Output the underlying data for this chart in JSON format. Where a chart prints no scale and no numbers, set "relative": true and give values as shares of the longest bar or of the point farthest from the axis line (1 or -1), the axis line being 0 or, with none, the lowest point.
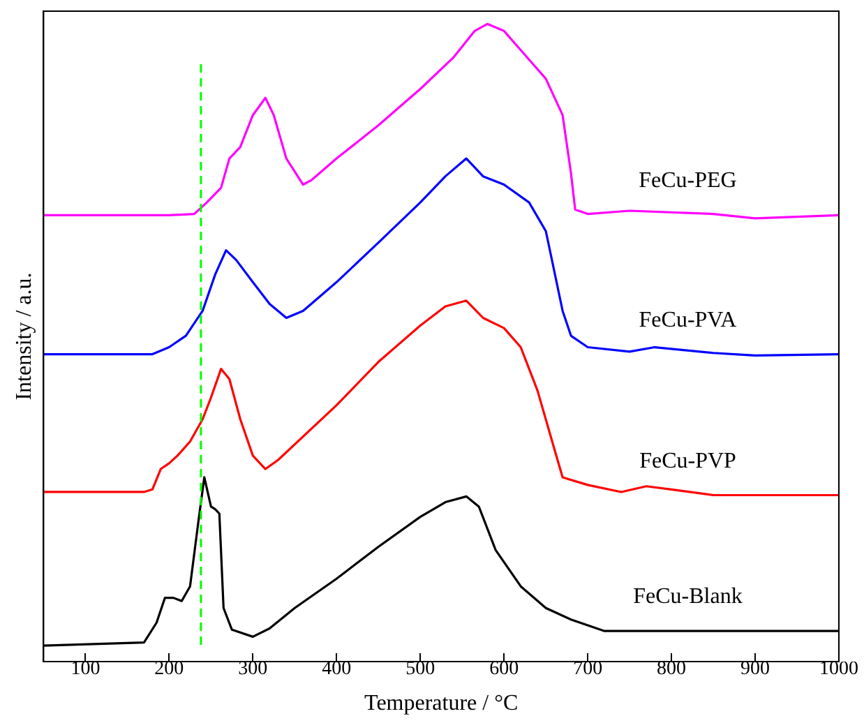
{
  "chart_data": {
    "type": "line",
    "xlabel": "Temperature / °C",
    "ylabel": "Intensity / a.u.",
    "relative": true,
    "xlim": [
      50,
      1000
    ],
    "xticks": [
      100,
      200,
      300,
      400,
      500,
      600,
      700,
      800,
      900,
      1000
    ],
    "tick_labels": "x",
    "grid": false,
    "legend": false,
    "marker": "none",
    "line_style": "solid",
    "series": [
      {
        "name": "FeCu-PEG",
        "color": "#ff00ff",
        "x": [
          50,
          200,
          230,
          245,
          262,
          272,
          285,
          300,
          315,
          325,
          340,
          360,
          370,
          400,
          450,
          500,
          540,
          565,
          580,
          600,
          620,
          650,
          670,
          680,
          685,
          700,
          750,
          850,
          900,
          1000
        ],
        "values": [
          0.7,
          0.7,
          0.702,
          0.72,
          0.743,
          0.789,
          0.807,
          0.857,
          0.884,
          0.857,
          0.789,
          0.748,
          0.755,
          0.789,
          0.841,
          0.898,
          0.948,
          0.989,
          1,
          0.989,
          0.959,
          0.914,
          0.857,
          0.766,
          0.709,
          0.702,
          0.707,
          0.702,
          0.695,
          0.7
        ]
      },
      {
        "name": "FeCu-PVA",
        "color": "#0000ff",
        "x": [
          50,
          180,
          200,
          220,
          240,
          255,
          268,
          280,
          300,
          320,
          340,
          360,
          400,
          450,
          500,
          530,
          555,
          575,
          600,
          630,
          650,
          670,
          680,
          700,
          750,
          780,
          850,
          900,
          1000
        ],
        "values": [
          0.482,
          0.482,
          0.493,
          0.511,
          0.55,
          0.607,
          0.645,
          0.63,
          0.595,
          0.561,
          0.539,
          0.55,
          0.595,
          0.657,
          0.72,
          0.761,
          0.789,
          0.761,
          0.748,
          0.72,
          0.675,
          0.55,
          0.511,
          0.493,
          0.486,
          0.493,
          0.484,
          0.48,
          0.482
        ]
      },
      {
        "name": "FeCu-PVP",
        "color": "#ff0000",
        "x": [
          50,
          170,
          180,
          190,
          200,
          210,
          225,
          240,
          250,
          262,
          272,
          285,
          300,
          315,
          330,
          400,
          450,
          500,
          530,
          555,
          575,
          600,
          620,
          640,
          660,
          670,
          700,
          740,
          770,
          800,
          850,
          1000
        ],
        "values": [
          0.266,
          0.266,
          0.27,
          0.302,
          0.311,
          0.323,
          0.345,
          0.38,
          0.414,
          0.459,
          0.443,
          0.38,
          0.323,
          0.302,
          0.316,
          0.402,
          0.47,
          0.527,
          0.557,
          0.566,
          0.539,
          0.523,
          0.493,
          0.425,
          0.334,
          0.289,
          0.277,
          0.266,
          0.275,
          0.27,
          0.261,
          0.261
        ]
      },
      {
        "name": "FeCu-Blank",
        "color": "#000000",
        "x": [
          50,
          170,
          185,
          195,
          205,
          215,
          225,
          235,
          242,
          250,
          255,
          260,
          265,
          275,
          300,
          320,
          350,
          400,
          450,
          500,
          530,
          555,
          570,
          590,
          620,
          650,
          680,
          720,
          800,
          1000
        ],
        "values": [
          0.025,
          0.03,
          0.061,
          0.1,
          0.1,
          0.095,
          0.118,
          0.22,
          0.289,
          0.243,
          0.239,
          0.232,
          0.084,
          0.05,
          0.039,
          0.052,
          0.084,
          0.13,
          0.18,
          0.227,
          0.25,
          0.259,
          0.243,
          0.175,
          0.118,
          0.084,
          0.066,
          0.048,
          0.048,
          0.048
        ]
      }
    ],
    "ref_lines": [
      {
        "axis": "x",
        "value": 238,
        "color": "#00ff00",
        "line_style": "dashed"
      }
    ]
  }
}
